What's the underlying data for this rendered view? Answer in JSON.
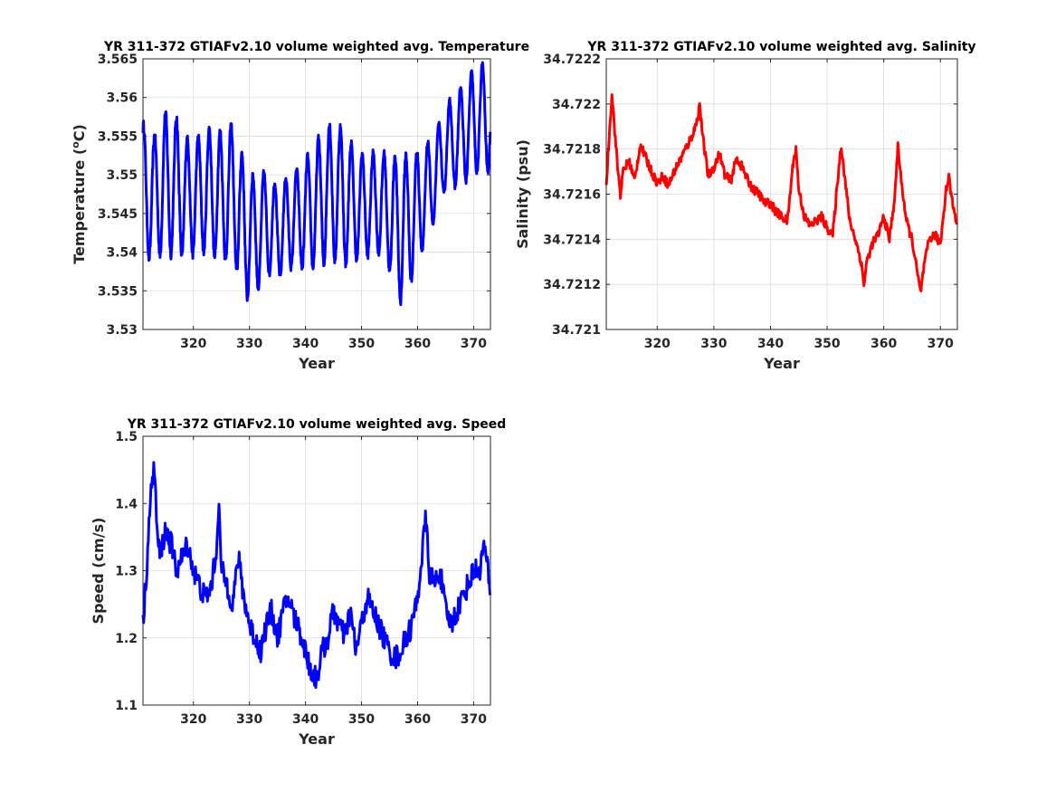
{
  "chart_data": [
    {
      "type": "line",
      "title": "YR 311-372 GTIAFv2.10 volume weighted avg. Temperature",
      "xlabel": "Year",
      "ylabel": "Temperature (",
      "ylabel_sup": "o",
      "ylabel_end": "C)",
      "xlim": [
        311,
        373
      ],
      "ylim": [
        3.53,
        3.565
      ],
      "xticks": [
        320,
        330,
        340,
        350,
        360,
        370
      ],
      "xtick_labels": [
        "320",
        "330",
        "340",
        "350",
        "360",
        "370"
      ],
      "yticks": [
        3.53,
        3.535,
        3.54,
        3.545,
        3.55,
        3.555,
        3.56,
        3.565
      ],
      "ytick_labels": [
        "3.53",
        "3.535",
        "3.54",
        "3.545",
        "3.55",
        "3.555",
        "3.56",
        "3.565"
      ],
      "grid": true,
      "color": "#0000ff",
      "series": [
        {
          "x": [
            311,
            313,
            315,
            317,
            319,
            321,
            323,
            325,
            327,
            329,
            331,
            333,
            335,
            337,
            339,
            341,
            343,
            345,
            347,
            349,
            351,
            353,
            355,
            357,
            359,
            361,
            363,
            365,
            367,
            369,
            371,
            373
          ],
          "center": [
            3.548,
            3.547,
            3.549,
            3.5485,
            3.547,
            3.5475,
            3.548,
            3.547,
            3.548,
            3.543,
            3.542,
            3.544,
            3.5425,
            3.544,
            3.5445,
            3.5455,
            3.547,
            3.548,
            3.547,
            3.546,
            3.546,
            3.5465,
            3.545,
            3.543,
            3.5445,
            3.547,
            3.5495,
            3.5535,
            3.5545,
            3.556,
            3.5575,
            3.557
          ],
          "amplitude": [
            0.0085,
            0.008,
            0.009,
            0.009,
            0.0075,
            0.0075,
            0.008,
            0.0085,
            0.0085,
            0.009,
            0.0075,
            0.0065,
            0.006,
            0.006,
            0.0065,
            0.0075,
            0.0085,
            0.009,
            0.0085,
            0.007,
            0.0065,
            0.0065,
            0.0075,
            0.0095,
            0.008,
            0.0065,
            0.0055,
            0.0055,
            0.006,
            0.0065,
            0.007,
            0.0065
          ]
        }
      ]
    },
    {
      "type": "line",
      "title": "YR 311-372 GTIAFv2.10 volume weighted avg. Salinity",
      "xlabel": "Year",
      "ylabel": "Salinity (psu)",
      "xlim": [
        311,
        373
      ],
      "ylim": [
        34.721,
        34.7222
      ],
      "xticks": [
        320,
        330,
        340,
        350,
        360,
        370
      ],
      "xtick_labels": [
        "320",
        "330",
        "340",
        "350",
        "360",
        "370"
      ],
      "yticks": [
        34.721,
        34.7212,
        34.7214,
        34.7216,
        34.7218,
        34.722,
        34.7222
      ],
      "ytick_labels": [
        "34.721",
        "34.7212",
        "34.7214",
        "34.7216",
        "34.7218",
        "34.722",
        "34.7222"
      ],
      "grid": true,
      "color": "#ff0000",
      "series": [
        {
          "x": [
            311,
            311.5,
            312,
            312.5,
            313,
            313.5,
            314,
            315,
            316,
            317,
            318,
            319,
            320,
            321,
            322,
            323,
            324,
            325,
            326,
            327,
            327.5,
            328,
            329,
            330,
            331,
            332,
            333,
            334,
            335,
            336,
            337,
            338,
            339,
            340,
            341,
            342,
            343,
            344,
            344.5,
            345,
            346,
            347,
            348,
            349,
            350,
            351,
            352,
            352.5,
            353,
            354,
            355,
            356,
            356.5,
            357,
            358,
            359,
            360,
            361,
            362,
            362.5,
            363,
            364,
            365,
            366,
            366.5,
            367,
            368,
            369,
            370,
            371,
            371.5,
            372,
            373
          ],
          "y": [
            34.72164,
            34.72185,
            34.72205,
            34.72188,
            34.72172,
            34.7216,
            34.7217,
            34.72175,
            34.72166,
            34.72182,
            34.72176,
            34.7217,
            34.72165,
            34.72168,
            34.72164,
            34.7217,
            34.72175,
            34.7218,
            34.72185,
            34.72192,
            34.722,
            34.72186,
            34.72168,
            34.72172,
            34.72178,
            34.72168,
            34.72166,
            34.72176,
            34.72172,
            34.72166,
            34.72162,
            34.7216,
            34.72156,
            34.72156,
            34.72152,
            34.7215,
            34.72148,
            34.72174,
            34.7218,
            34.72162,
            34.7215,
            34.72146,
            34.72148,
            34.7215,
            34.72145,
            34.72142,
            34.7217,
            34.72182,
            34.7217,
            34.72148,
            34.7214,
            34.7213,
            34.7212,
            34.7213,
            34.72138,
            34.72142,
            34.7215,
            34.7214,
            34.7216,
            34.72182,
            34.72168,
            34.72148,
            34.7214,
            34.72124,
            34.72116,
            34.72126,
            34.7214,
            34.72142,
            34.72138,
            34.72162,
            34.72168,
            34.72158,
            34.72146
          ]
        }
      ]
    },
    {
      "type": "line",
      "title": "YR 311-372 GTIAFv2.10 volume weighted avg. Speed",
      "xlabel": "Year",
      "ylabel": "Speed (cm/s)",
      "xlim": [
        311,
        373
      ],
      "ylim": [
        1.1,
        1.5
      ],
      "xticks": [
        320,
        330,
        340,
        350,
        360,
        370
      ],
      "xtick_labels": [
        "320",
        "330",
        "340",
        "350",
        "360",
        "370"
      ],
      "yticks": [
        1.1,
        1.2,
        1.3,
        1.4,
        1.5
      ],
      "ytick_labels": [
        "1.1",
        "1.2",
        "1.3",
        "1.4",
        "1.5"
      ],
      "grid": true,
      "color": "#0000ff",
      "series": [
        {
          "x": [
            311,
            311.5,
            312,
            312.5,
            313,
            313.5,
            314,
            315,
            316,
            317,
            318,
            319,
            320,
            321,
            322,
            323,
            324,
            324.5,
            325,
            326,
            327,
            328,
            329,
            330,
            331,
            332,
            333,
            334,
            335,
            336,
            337,
            338,
            339,
            340,
            341,
            342,
            343,
            344,
            345,
            346,
            347,
            348,
            349,
            350,
            351,
            352,
            353,
            354,
            355,
            356,
            357,
            358,
            359,
            360,
            361,
            361.5,
            362,
            363,
            364,
            365,
            366,
            367,
            368,
            369,
            370,
            371,
            372,
            373
          ],
          "y": [
            1.22,
            1.28,
            1.36,
            1.42,
            1.46,
            1.36,
            1.32,
            1.36,
            1.34,
            1.3,
            1.32,
            1.34,
            1.3,
            1.28,
            1.26,
            1.27,
            1.32,
            1.4,
            1.3,
            1.28,
            1.25,
            1.32,
            1.26,
            1.22,
            1.2,
            1.18,
            1.22,
            1.24,
            1.2,
            1.24,
            1.26,
            1.23,
            1.21,
            1.18,
            1.15,
            1.14,
            1.18,
            1.2,
            1.24,
            1.22,
            1.2,
            1.24,
            1.18,
            1.22,
            1.26,
            1.24,
            1.22,
            1.2,
            1.18,
            1.17,
            1.18,
            1.2,
            1.22,
            1.26,
            1.34,
            1.38,
            1.3,
            1.28,
            1.3,
            1.24,
            1.22,
            1.24,
            1.26,
            1.28,
            1.3,
            1.3,
            1.34,
            1.26
          ]
        }
      ]
    }
  ]
}
